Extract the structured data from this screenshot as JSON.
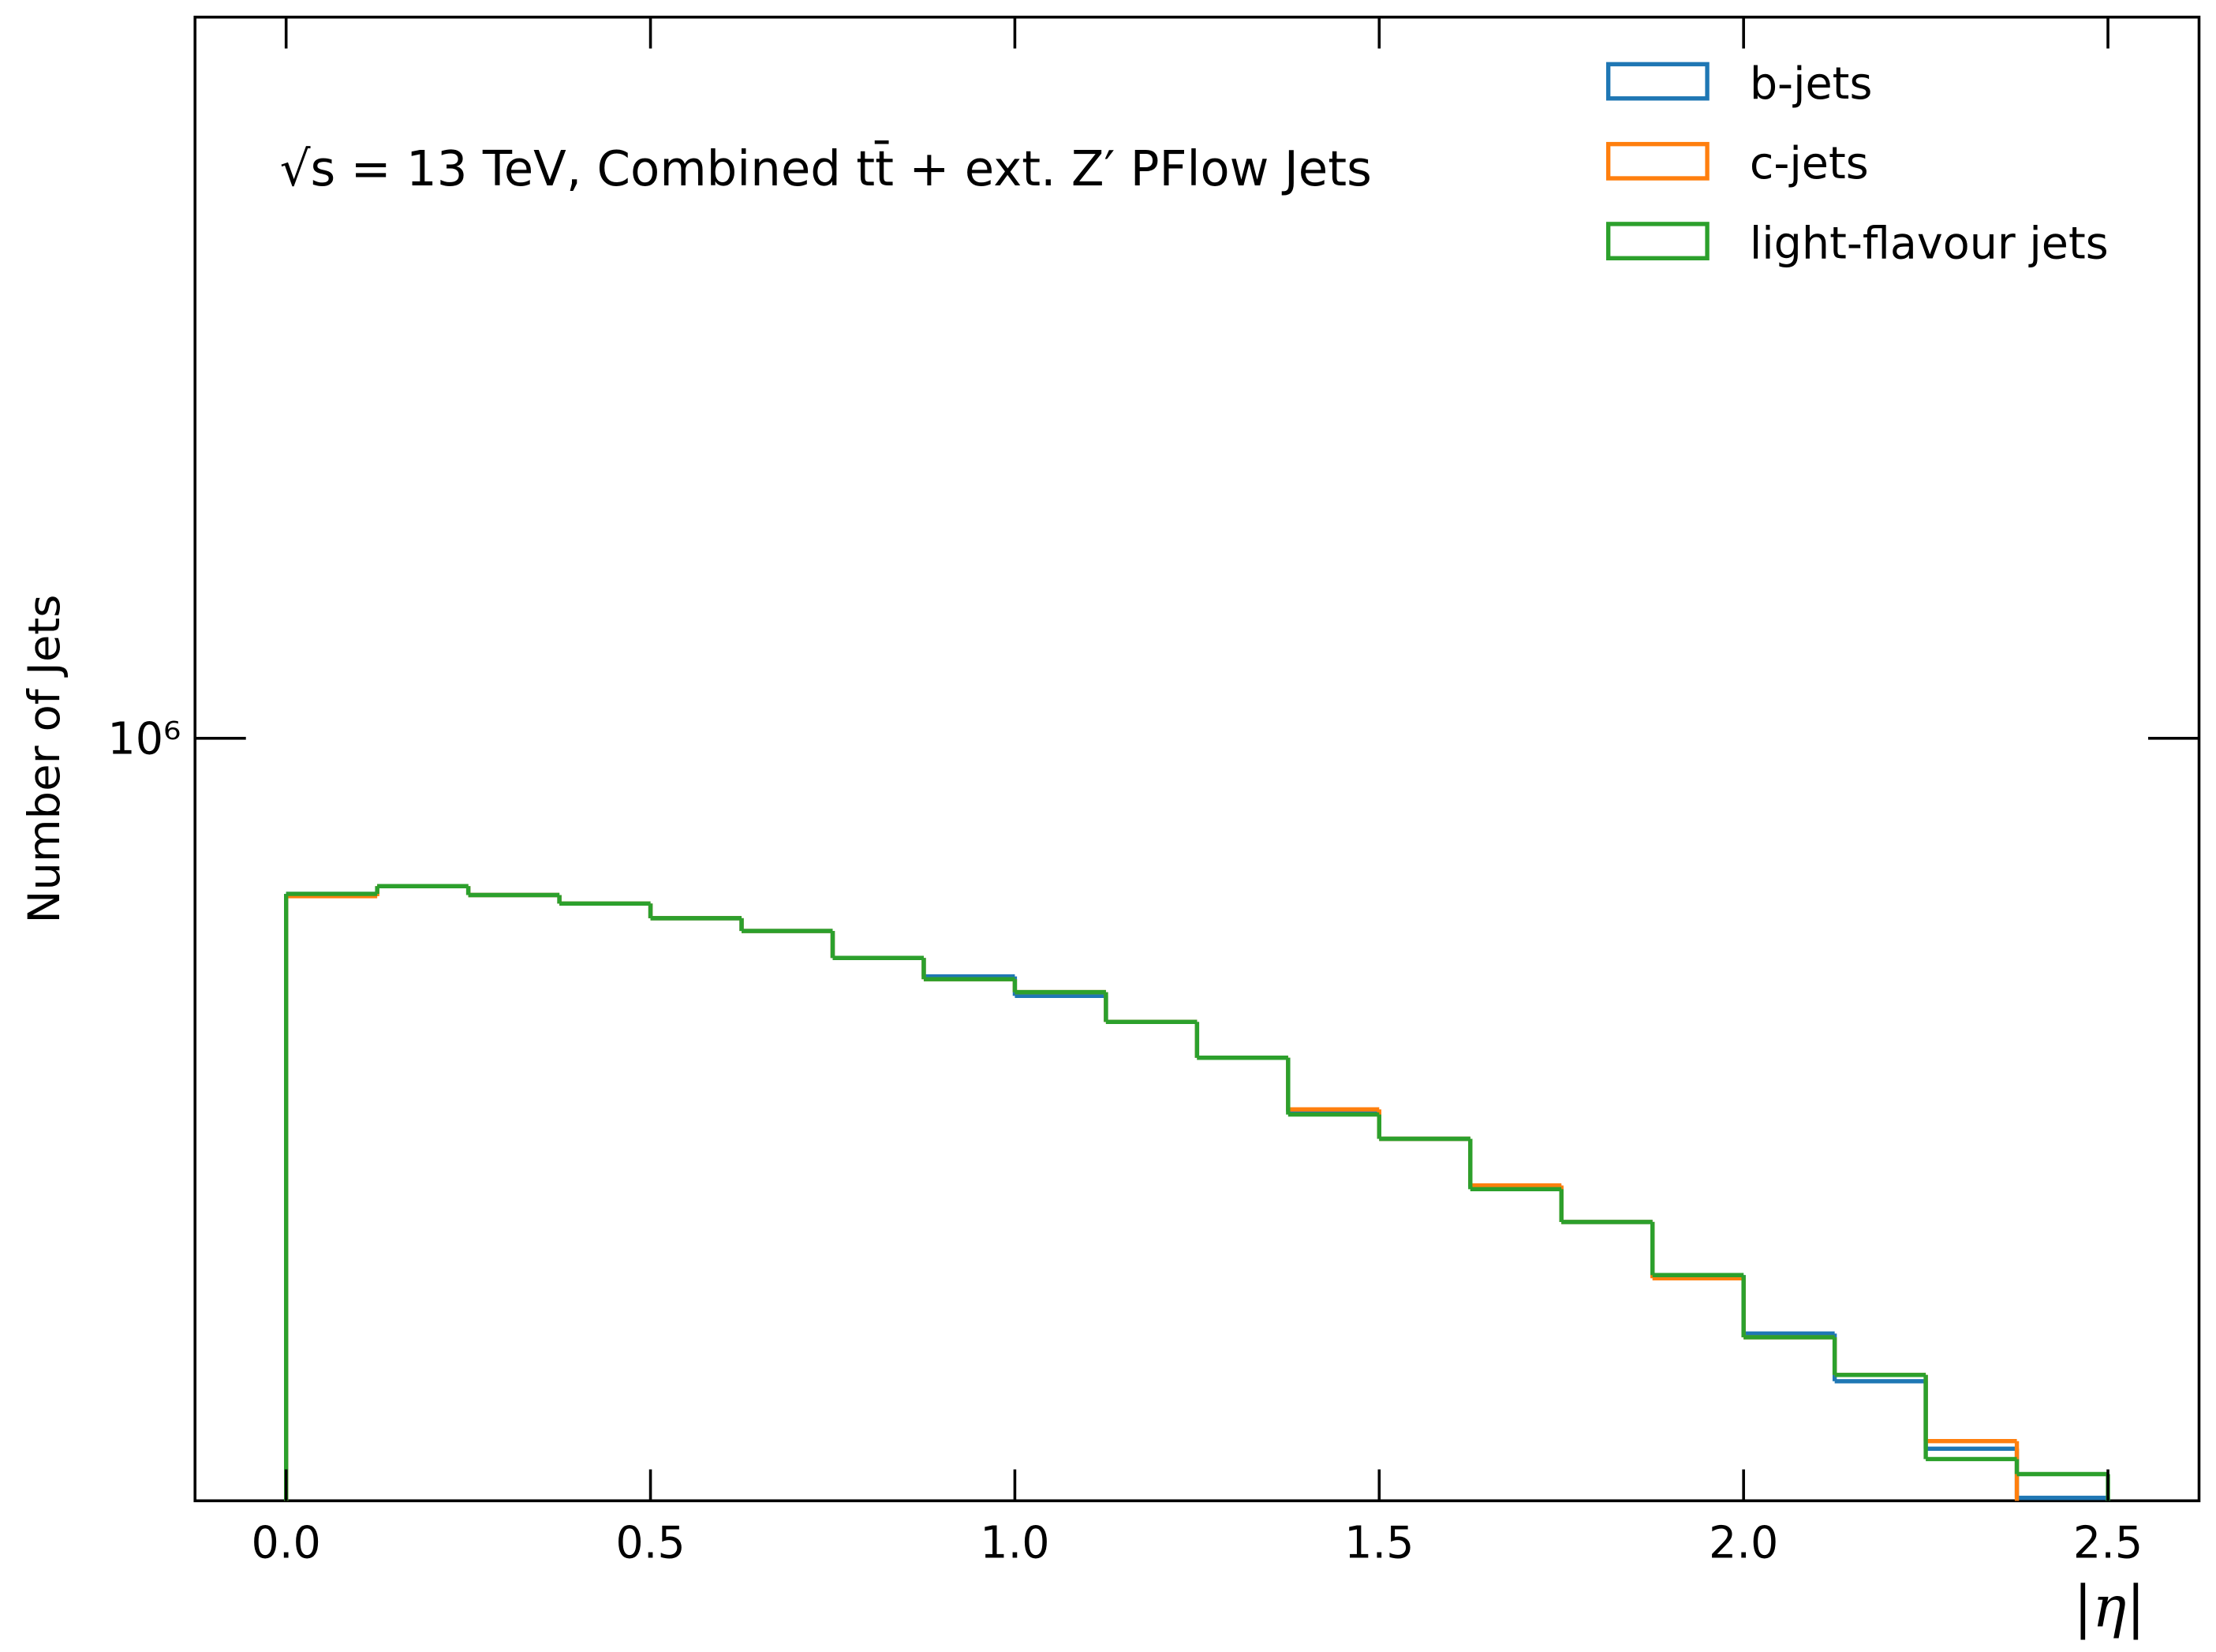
{
  "chart_data": {
    "type": "histogram",
    "annotation": "√s = 13 TeV, Combined tt̄ + ext. Z′ PFlow Jets",
    "x_label": "|η|",
    "y_label": "Number of Jets",
    "log_y": true,
    "legend": "upper right",
    "bins": [
      0,
      0.125,
      0.25,
      0.375,
      0.5,
      0.625,
      0.75,
      0.875,
      1.0,
      1.125,
      1.25,
      1.375,
      1.5,
      1.625,
      1.75,
      1.875,
      2.0,
      2.125,
      2.25,
      2.375,
      2.5
    ],
    "series": [
      {
        "name": "b-jets",
        "color": "#1f77b4",
        "values": [
          653000,
          667000,
          651000,
          636000,
          611000,
          590000,
          548000,
          521000,
          494000,
          460000,
          417000,
          360000,
          334000,
          293000,
          266000,
          230000,
          196000,
          172000,
          143000,
          125000
        ]
      },
      {
        "name": "c-jets",
        "color": "#ff7f0e",
        "values": [
          649000,
          667000,
          651000,
          636000,
          611000,
          590000,
          548000,
          517000,
          499000,
          460000,
          417000,
          362000,
          334000,
          294000,
          266000,
          228000,
          194000,
          175000,
          146000,
          120000
        ]
      },
      {
        "name": "light-flavour jets",
        "color": "#2ca02c",
        "values": [
          653000,
          667000,
          651000,
          636000,
          611000,
          590000,
          548000,
          517000,
          499000,
          460000,
          417000,
          357000,
          334000,
          291000,
          266000,
          230000,
          194000,
          175000,
          139000,
          133400
        ]
      }
    ],
    "xlim": [
      -0.125,
      2.625
    ],
    "xticks": [
      {
        "value": 0,
        "label": "0.0"
      },
      {
        "value": 0.5,
        "label": "0.5"
      },
      {
        "value": 1,
        "label": "1.0"
      },
      {
        "value": 1.5,
        "label": "1.5"
      },
      {
        "value": 2,
        "label": "2.0"
      },
      {
        "value": 2.5,
        "label": "2.5"
      }
    ],
    "ylim": [
      124000,
      7200000
    ],
    "yticks": [
      {
        "value": 1000000,
        "label": "10⁶"
      }
    ]
  }
}
